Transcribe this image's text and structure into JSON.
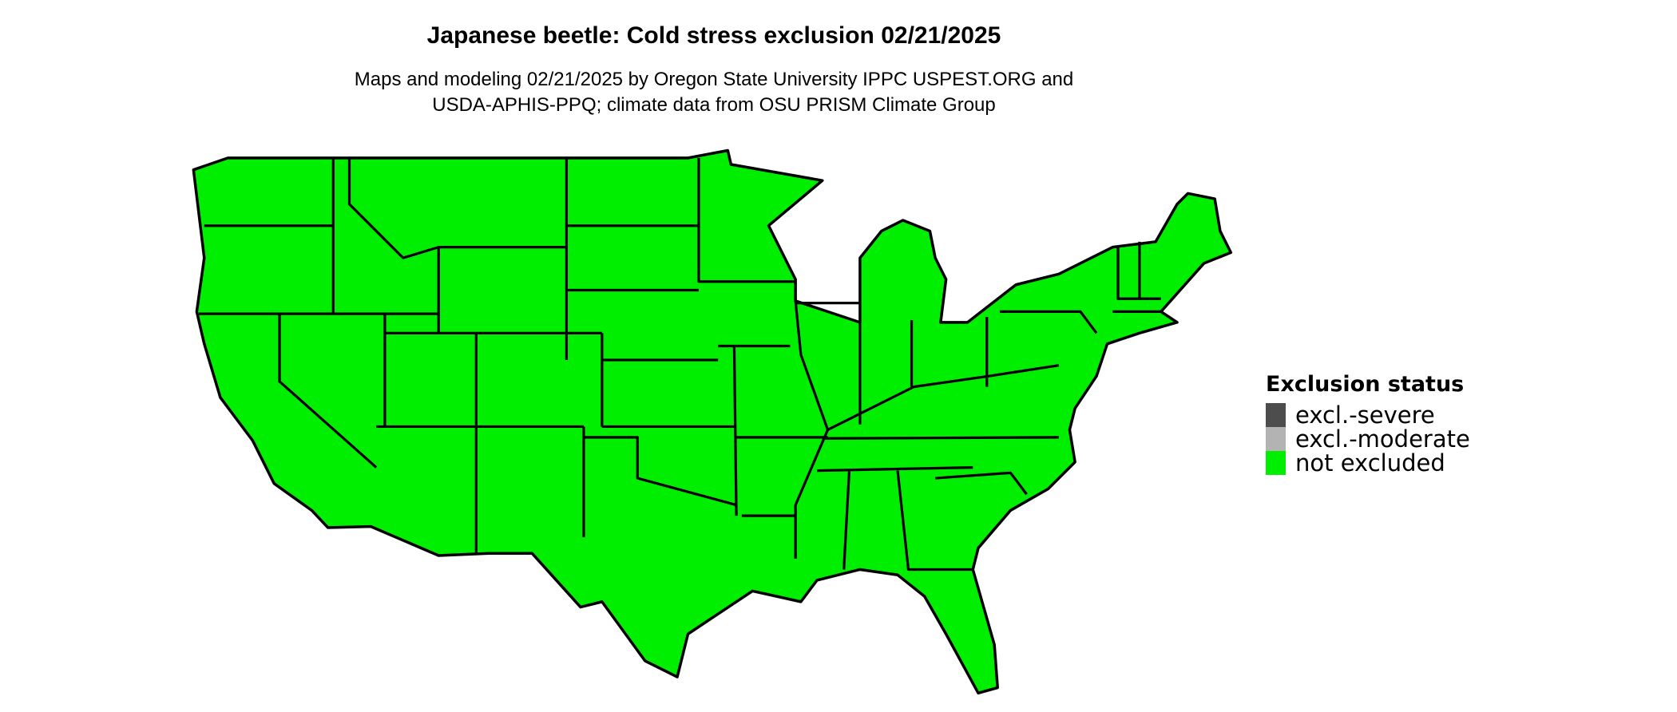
{
  "title": "Japanese beetle: Cold stress exclusion 02/21/2025",
  "subtitle_lines": [
    "Maps and modeling 02/21/2025 by Oregon State University IPPC USPEST.ORG and",
    "USDA-APHIS-PPQ; climate data from OSU PRISM Climate Group"
  ],
  "chart_data": {
    "type": "choropleth map",
    "region": "contiguous United States",
    "legend": {
      "title": "Exclusion status",
      "placement": "right",
      "entries": [
        {
          "label": "excl.-severe",
          "color": "#4d4d4d"
        },
        {
          "label": "excl.-moderate",
          "color": "#b3b3b3"
        },
        {
          "label": "not excluded",
          "color": "#00ee00"
        }
      ]
    },
    "displayed_status": "not excluded"
  }
}
